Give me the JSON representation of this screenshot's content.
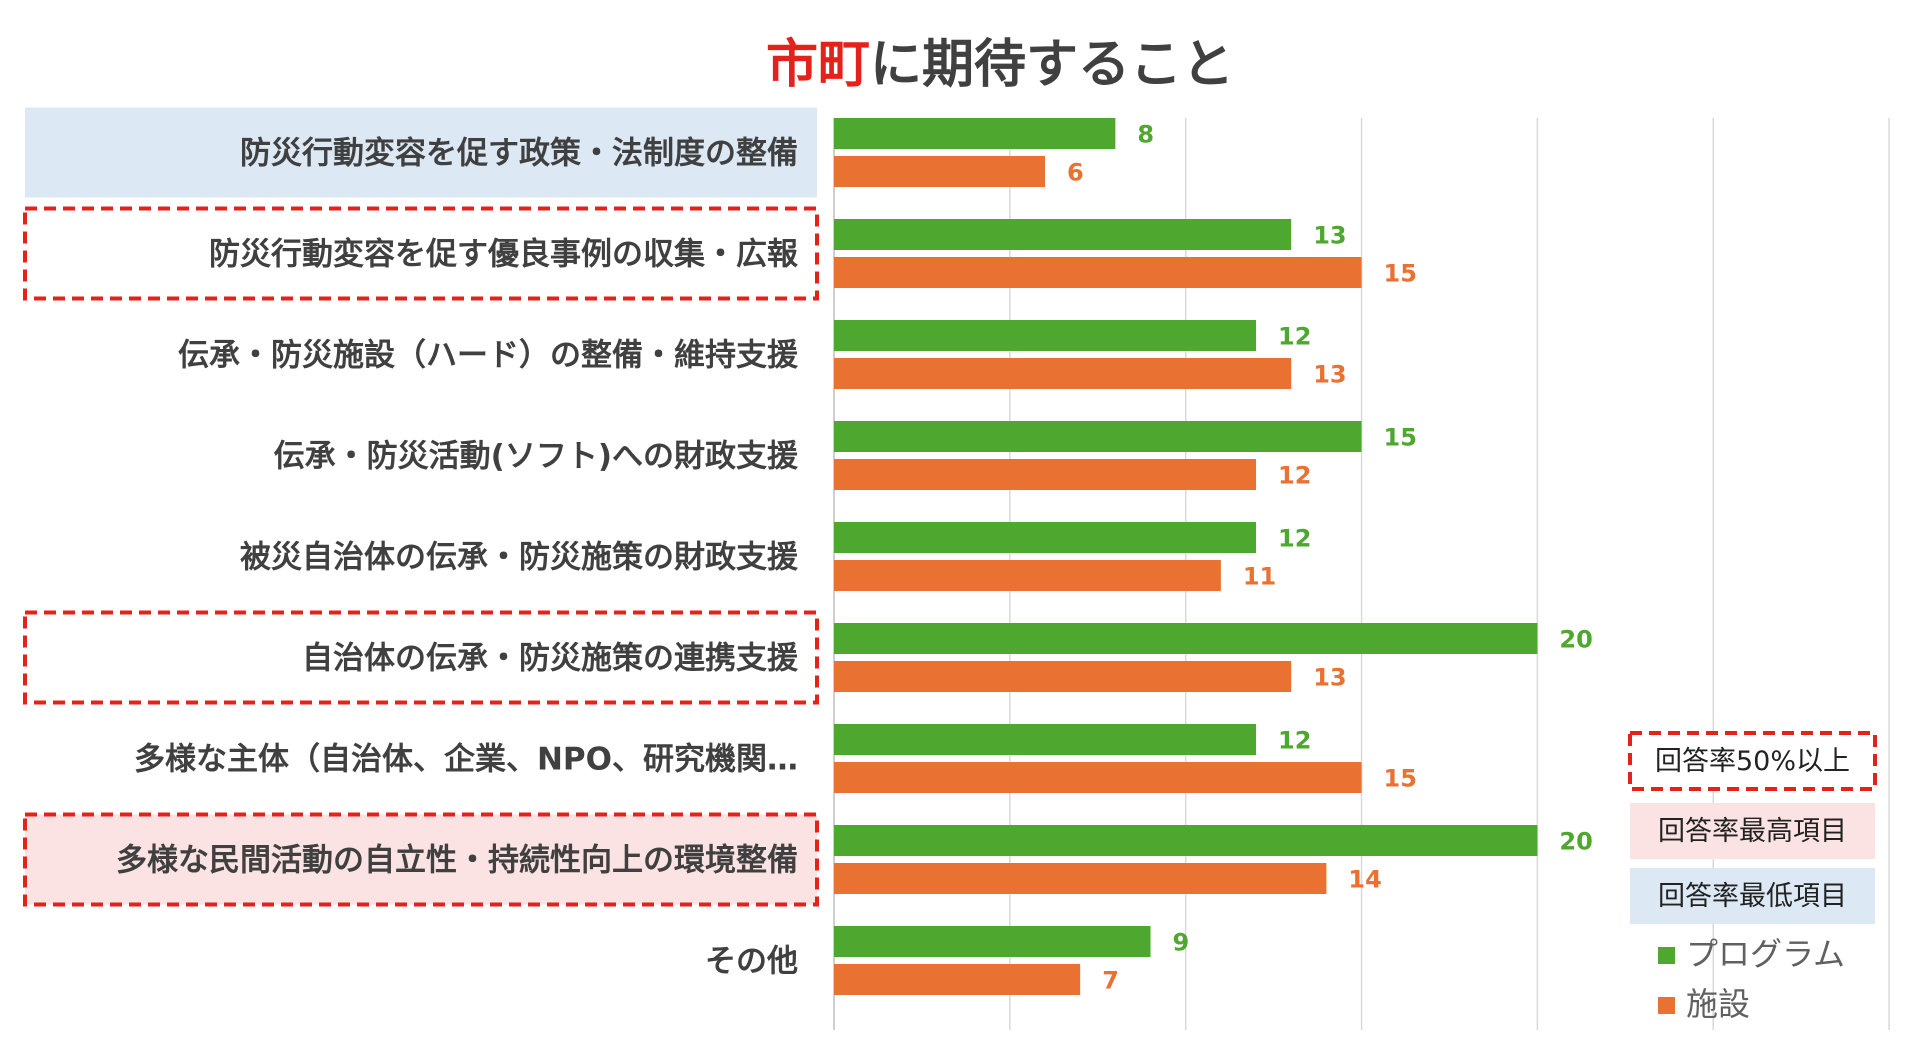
{
  "title": {
    "highlight": "市町",
    "rest": "に期待すること"
  },
  "chart_data": {
    "type": "bar",
    "orientation": "horizontal",
    "categories": [
      "防災行動変容を促す政策・法制度の整備",
      "防災行動変容を促す優良事例の収集・広報",
      "伝承・防災施設（ハード）の整備・維持支援",
      "伝承・防災活動(ソフト)への財政支援",
      "被災自治体の伝承・防災施策の財政支援",
      "自治体の伝承・防災施策の連携支援",
      "多様な主体（自治体、企業、NPO、研究機関…",
      "多様な民間活動の自立性・持続性向上の環境整備",
      "その他"
    ],
    "series": [
      {
        "name": "プログラム",
        "color": "#4ea72e",
        "values": [
          8,
          13,
          12,
          15,
          12,
          20,
          12,
          20,
          9
        ]
      },
      {
        "name": "施設",
        "color": "#e97132",
        "values": [
          6,
          15,
          13,
          12,
          11,
          13,
          15,
          14,
          7
        ]
      }
    ],
    "xlim": [
      0,
      30
    ],
    "grid": true,
    "legend": "bottom-right",
    "highlights": {
      "lowest": [
        0
      ],
      "highest": [
        7
      ],
      "over_50_percent": [
        1,
        5,
        7
      ]
    }
  },
  "legend": {
    "dashed_label": "回答率50%以上",
    "highest_label": "回答率最高項目",
    "lowest_label": "回答率最低項目",
    "highest_color": "#fbe3e3",
    "lowest_color": "#dce9f5",
    "dashed_color": "#e3221b"
  }
}
